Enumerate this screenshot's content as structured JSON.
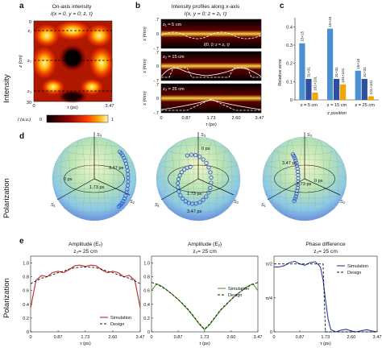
{
  "row_labels": {
    "intensity": "Intensity",
    "polarization_d": "Polarization",
    "polarization_e": "Polarization"
  },
  "panel_a": {
    "letter": "a",
    "title": "On-axis intensity",
    "subtitle": "I(x = 0, y = 0; z, τ)",
    "ylabel": "z (cm)",
    "xlabel": "τ (ps)",
    "x_ticks": [
      "0",
      "3.47"
    ],
    "y_ticks": [
      "0",
      "30"
    ],
    "markers": [
      "z₁",
      "z₂",
      "z₃"
    ],
    "colorbar_label": "I (a.u.)",
    "colorbar_ticks": [
      "0",
      "1"
    ]
  },
  "panel_b": {
    "letter": "b",
    "title": "Intensity profiles along x-axis",
    "subtitle": "I(x, y = 0; z = zᵢ, τ)",
    "strips": [
      {
        "label": "z₁ = 5 cm"
      },
      {
        "label": "z₂ = 15 cm"
      },
      {
        "label": "z₃ = 25 cm"
      }
    ],
    "inset_label": "I(0, 0; z = zᵢ, τ)",
    "ylabel": "x (mm)",
    "y_ticks": [
      ".7",
      "0",
      "-.7"
    ],
    "xlabel": "τ (ps)",
    "x_ticks": [
      "0",
      "0.87",
      "1.73",
      "2.60",
      "3.47"
    ]
  },
  "panel_c": {
    "letter": "c",
    "ylabel": "Relative error",
    "xlabel": "z position",
    "y_ticks": [
      "0",
      "0.1",
      "0.2",
      "0.3",
      "0.4"
    ],
    "chart_data": {
      "type": "bar",
      "categories": [
        "z = 5 cm",
        "z = 15 cm",
        "z = 25 cm"
      ],
      "series": [
        {
          "name": "15×15",
          "values": [
            0.31,
            0.39,
            0.16
          ],
          "color": "#4a8fd0"
        },
        {
          "name": "31×31",
          "values": [
            0.115,
            0.115,
            0.115
          ],
          "color": "#2d4f9e"
        },
        {
          "name": "101×101",
          "values": [
            0.04,
            0.085,
            0.02
          ],
          "color": "#f0a800"
        }
      ],
      "ylim": [
        0,
        0.45
      ]
    }
  },
  "panel_d": {
    "letter": "d",
    "spheres": [
      {
        "title": "z₁ = 5 cm",
        "labels": [
          "3.47 ps",
          "0 ps",
          "1.73 ps"
        ]
      },
      {
        "title": "z₂ = 15 cm",
        "labels": [
          "0 ps",
          "1.73 ps",
          "3.47 ps"
        ]
      },
      {
        "title": "z₃ = 25 cm",
        "labels": [
          "3.47 ps",
          "1.73 ps",
          "0 ps"
        ]
      }
    ],
    "axes": [
      "S₁",
      "S₂",
      "S₃"
    ]
  },
  "panel_e": {
    "letter": "e",
    "xlabel": "τ (ps)",
    "x_ticks": [
      "0",
      "0.87",
      "1.73",
      "2.60",
      "3.47"
    ],
    "plots": [
      {
        "title": "Amplitude (Eₓ)",
        "subtitle": "z₃= 25 cm",
        "y_ticks": [
          "0",
          "0.2",
          "0.4",
          "0.6",
          "0.8",
          "1.0"
        ],
        "legend": [
          "Simulation",
          "Design"
        ],
        "sim_color": "#c0262c",
        "chart_data": {
          "type": "line",
          "x": [
            0,
            0.17,
            0.35,
            0.52,
            0.69,
            0.87,
            1.04,
            1.21,
            1.39,
            1.56,
            1.73,
            1.91,
            2.08,
            2.25,
            2.43,
            2.6,
            2.77,
            2.95,
            3.12,
            3.3,
            3.47
          ],
          "series": [
            {
              "name": "Simulation",
              "values": [
                0.35,
                0.75,
                0.82,
                0.8,
                0.86,
                0.88,
                0.86,
                0.9,
                0.96,
                0.97,
                0.95,
                0.97,
                0.96,
                0.9,
                0.86,
                0.88,
                0.86,
                0.8,
                0.82,
                0.75,
                0.35
              ]
            },
            {
              "name": "Design",
              "values": [
                0.7,
                0.74,
                0.78,
                0.8,
                0.83,
                0.86,
                0.88,
                0.91,
                0.93,
                0.94,
                0.94,
                0.94,
                0.93,
                0.91,
                0.88,
                0.86,
                0.83,
                0.8,
                0.78,
                0.74,
                0.7
              ]
            }
          ],
          "ylim": [
            0,
            1.1
          ]
        }
      },
      {
        "title": "Amplitude (Eᵧ)",
        "subtitle": "z₃= 25 cm",
        "y_ticks": [
          "0",
          "0.2",
          "0.4",
          "0.6",
          "0.8",
          "1.0"
        ],
        "legend": [
          "Simulation",
          "Design"
        ],
        "sim_color": "#4aa02c",
        "chart_data": {
          "type": "line",
          "x": [
            0,
            0.17,
            0.35,
            0.52,
            0.69,
            0.87,
            1.04,
            1.21,
            1.39,
            1.56,
            1.73,
            1.91,
            2.08,
            2.25,
            2.43,
            2.6,
            2.77,
            2.95,
            3.12,
            3.3,
            3.47
          ],
          "series": [
            {
              "name": "Simulation",
              "values": [
                0.6,
                0.7,
                0.66,
                0.6,
                0.54,
                0.47,
                0.39,
                0.31,
                0.21,
                0.11,
                0.03,
                0.11,
                0.21,
                0.31,
                0.39,
                0.47,
                0.54,
                0.6,
                0.66,
                0.7,
                0.6
              ]
            },
            {
              "name": "Design",
              "values": [
                0.72,
                0.69,
                0.65,
                0.6,
                0.54,
                0.47,
                0.4,
                0.32,
                0.22,
                0.12,
                0.04,
                0.12,
                0.22,
                0.32,
                0.4,
                0.47,
                0.54,
                0.6,
                0.65,
                0.69,
                0.72
              ]
            }
          ],
          "ylim": [
            0,
            1.1
          ]
        }
      },
      {
        "title": "Phase difference",
        "subtitle": "z₃= 25 cm",
        "y_ticks": [
          "0",
          "π/4",
          "π/2"
        ],
        "legend": [
          "Simulation",
          "Design"
        ],
        "sim_color": "#2a3f9a",
        "chart_data": {
          "type": "line",
          "x": [
            0,
            0.17,
            0.35,
            0.52,
            0.69,
            0.87,
            1.04,
            1.21,
            1.39,
            1.56,
            1.65,
            1.73,
            1.82,
            1.91,
            2.08,
            2.25,
            2.43,
            2.6,
            2.77,
            2.95,
            3.12,
            3.3,
            3.47
          ],
          "series": [
            {
              "name": "Simulation",
              "values": [
                1.5,
                1.5,
                1.53,
                1.6,
                1.63,
                1.57,
                1.54,
                1.6,
                1.62,
                1.5,
                1.2,
                0.75,
                0.3,
                0.05,
                0.0,
                0.04,
                0.06,
                0.02,
                0.0,
                0.03,
                0.05,
                0.02,
                0.0
              ]
            },
            {
              "name": "Design",
              "values": [
                1.57,
                1.57,
                1.57,
                1.57,
                1.57,
                1.57,
                1.57,
                1.57,
                1.57,
                1.57,
                1.57,
                0.0,
                0.0,
                0.0,
                0.0,
                0.0,
                0.0,
                0.0,
                0.0,
                0.0,
                0.0,
                0.0,
                0.0
              ]
            }
          ],
          "ylim": [
            0,
            1.75
          ]
        }
      }
    ]
  }
}
